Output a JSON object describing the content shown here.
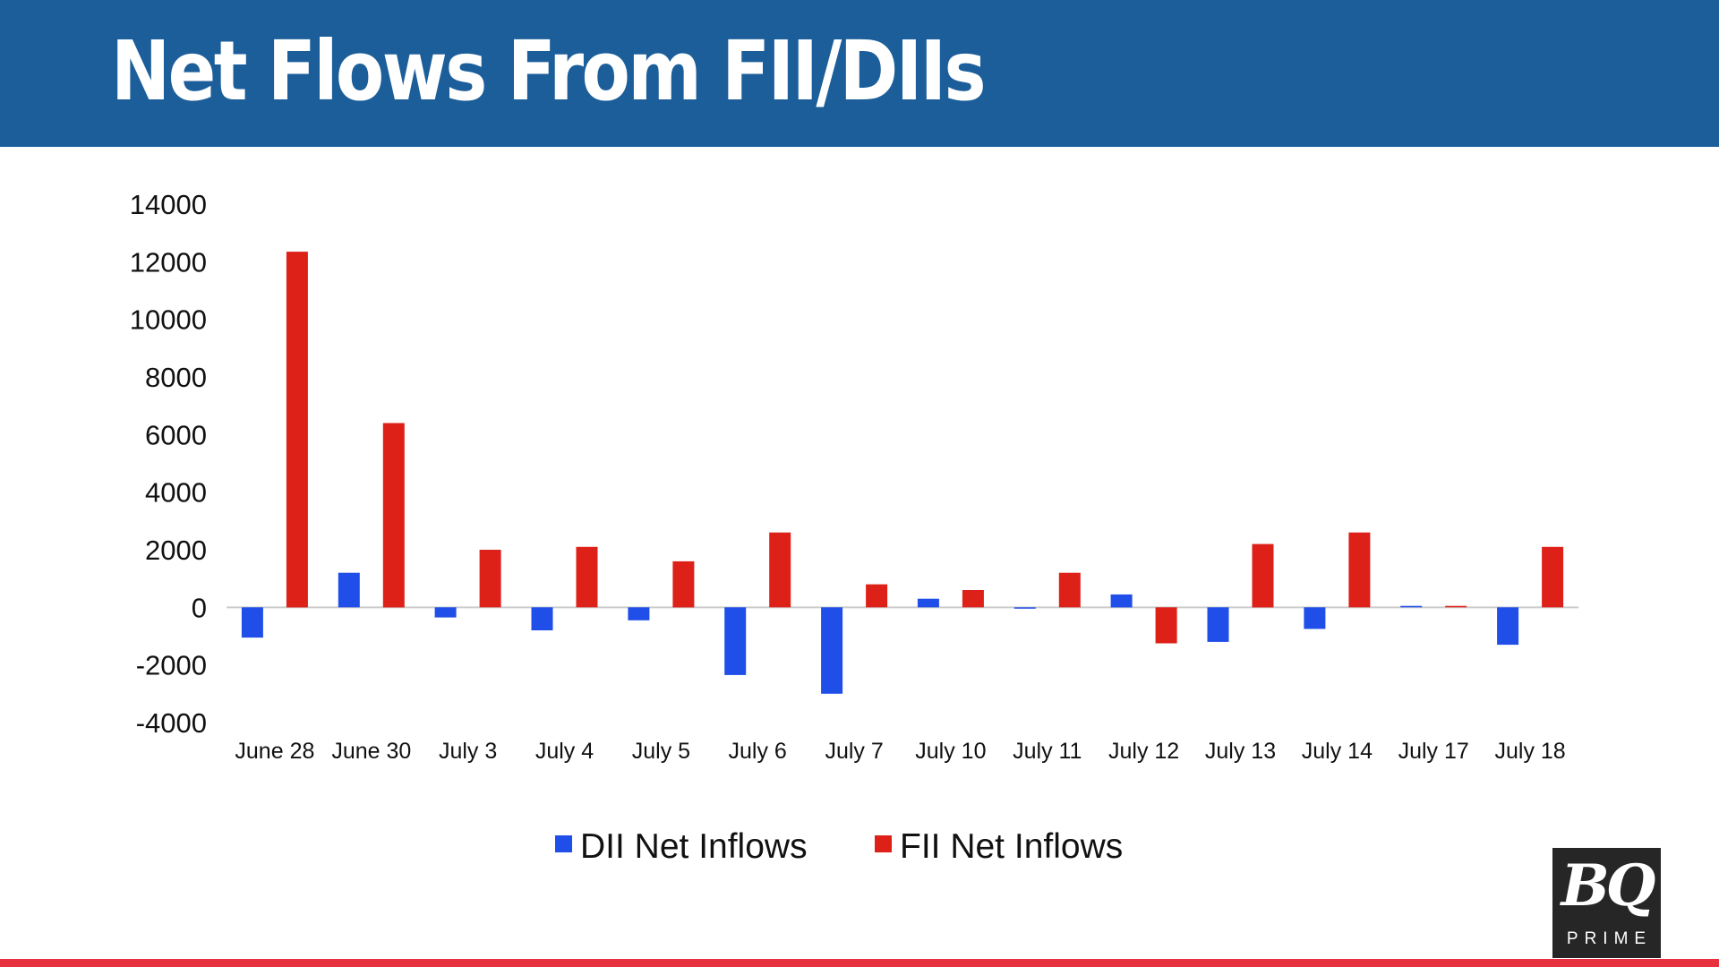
{
  "header": {
    "title": "Net Flows From FII/DIIs"
  },
  "colors": {
    "header_bg": "#1b5e99",
    "dii": "#1f4ee8",
    "fii": "#dd2018",
    "accent_bar": "#e8313f"
  },
  "chart_data": {
    "type": "bar",
    "title": "Net Flows From FII/DIIs",
    "xlabel": "",
    "ylabel": "",
    "ylim": [
      -4000,
      14000
    ],
    "yticks": [
      14000,
      12000,
      10000,
      8000,
      6000,
      4000,
      2000,
      0,
      -2000,
      -4000
    ],
    "grid": false,
    "legend_position": "bottom-center",
    "categories": [
      "June 28",
      "June 30",
      "July 3",
      "July 4",
      "July 5",
      "July 6",
      "July 7",
      "July 10",
      "July 11",
      "July 12",
      "July 13",
      "July 14",
      "July 17",
      "July 18"
    ],
    "series": [
      {
        "name": "DII Net Inflows",
        "color": "#1f4ee8",
        "values": [
          -1050,
          1200,
          -350,
          -800,
          -450,
          -2350,
          -3000,
          300,
          -30,
          450,
          -1200,
          -750,
          50,
          -1300
        ]
      },
      {
        "name": "FII Net Inflows",
        "color": "#dd2018",
        "values": [
          12350,
          6400,
          2000,
          2100,
          1600,
          2600,
          800,
          600,
          1200,
          -1250,
          2200,
          2600,
          50,
          2100
        ]
      }
    ]
  },
  "logo": {
    "text": "BQ",
    "subtext": "PRIME"
  }
}
